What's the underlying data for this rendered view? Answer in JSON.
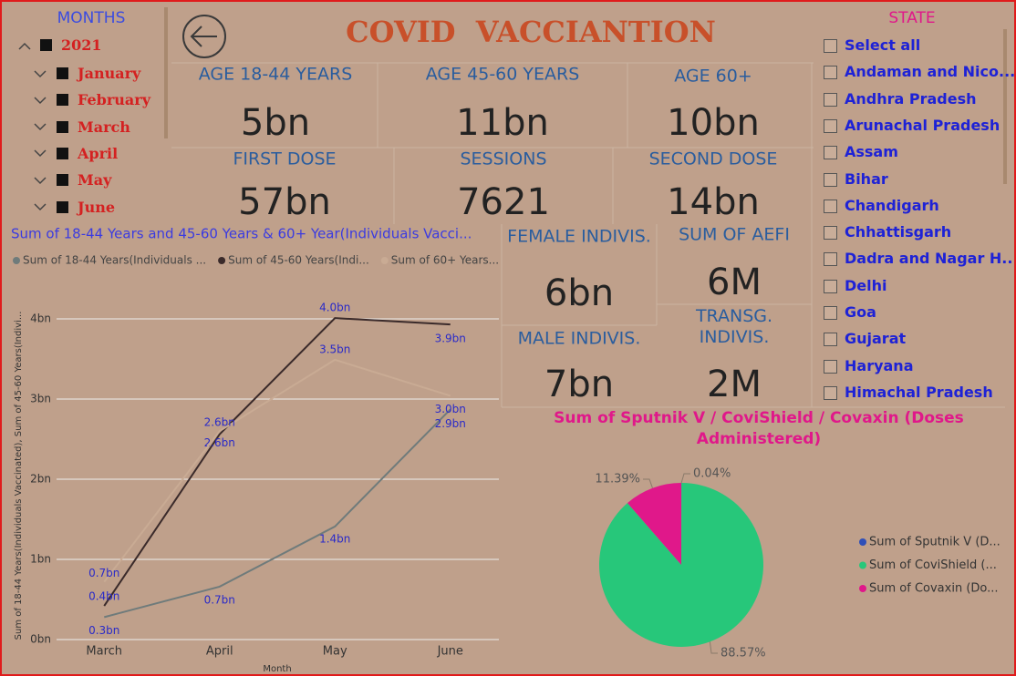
{
  "header": {
    "title": "COVID  VACCIANTION"
  },
  "months_slicer": {
    "title": "MONTHS",
    "year": "2021",
    "months": [
      "January",
      "February",
      "March",
      "April",
      "May",
      "June"
    ]
  },
  "state_slicer": {
    "title": "STATE",
    "items": [
      "Select all",
      "Andaman and Nico...",
      "Andhra Pradesh",
      "Arunachal Pradesh",
      "Assam",
      "Bihar",
      "Chandigarh",
      "Chhattisgarh",
      "Dadra and Nagar H...",
      "Delhi",
      "Goa",
      "Gujarat",
      "Haryana",
      "Himachal Pradesh"
    ]
  },
  "cards": [
    {
      "label": "AGE 18-44 YEARS",
      "value": "5bn"
    },
    {
      "label": "AGE 45-60 YEARS",
      "value": "11bn"
    },
    {
      "label": "AGE 60+",
      "value": "10bn"
    },
    {
      "label": "FIRST DOSE",
      "value": "57bn"
    },
    {
      "label": "SESSIONS",
      "value": "7621"
    },
    {
      "label": "SECOND DOSE",
      "value": "14bn"
    },
    {
      "label": "FEMALE INDIVIS.",
      "value": "6bn"
    },
    {
      "label": "SUM OF AEFI",
      "value": "6M"
    },
    {
      "label": "MALE INDIVIS.",
      "value": "7bn"
    },
    {
      "label": "TRANSG. INDIVIS.",
      "value": "2M"
    }
  ],
  "chart_data": [
    {
      "type": "line",
      "title": "Sum of 18-44 Years and  45-60 Years & 60+ Year(Individuals Vacci...",
      "x_label": "Month",
      "y_label": "Sum of 18-44 Years(Individuals Vaccinated), Sum of 45-60 Years(Indivi...",
      "categories": [
        "March",
        "April",
        "May",
        "June"
      ],
      "ylim": [
        0,
        4.5
      ],
      "yticks": [
        {
          "value": 0,
          "label": "0bn"
        },
        {
          "value": 1,
          "label": "1bn"
        },
        {
          "value": 2,
          "label": "2bn"
        },
        {
          "value": 3,
          "label": "3bn"
        },
        {
          "value": 4,
          "label": "4bn"
        }
      ],
      "grid": true,
      "series": [
        {
          "name": "Sum of 18-44 Years(Individuals ...",
          "color": "#6f7b7b",
          "values": [
            0.28,
            0.66,
            1.41,
            2.87
          ],
          "value_labels": [
            "0.3bn",
            "0.7bn",
            "1.4bn",
            "2.9bn"
          ]
        },
        {
          "name": "Sum of 45-60 Years(Indi...",
          "color": "#3a2a2a",
          "values": [
            0.42,
            2.56,
            4.01,
            3.93
          ],
          "value_labels": [
            "0.4bn",
            "2.6bn",
            "4.0bn",
            "3.9bn"
          ]
        },
        {
          "name": "Sum of 60+ Years...",
          "color": "#c9ab94",
          "values": [
            0.72,
            2.6,
            3.49,
            3.04
          ],
          "value_labels": [
            "0.7bn",
            "2.6bn",
            "3.5bn",
            "3.0bn"
          ]
        }
      ]
    },
    {
      "type": "pie",
      "title": "Sum of Sputnik V / CoviShield / Covaxin (Doses Administered)",
      "categories": [
        "Sum of Sputnik V (D...",
        "Sum of CoviShield (...",
        "Sum of  Covaxin (Do..."
      ],
      "values": [
        0.04,
        88.57,
        11.39
      ],
      "value_labels": [
        "0.04%",
        "88.57%",
        "11.39%"
      ],
      "colors": [
        "#2f4fb8",
        "#27c77a",
        "#e0188a"
      ]
    }
  ]
}
